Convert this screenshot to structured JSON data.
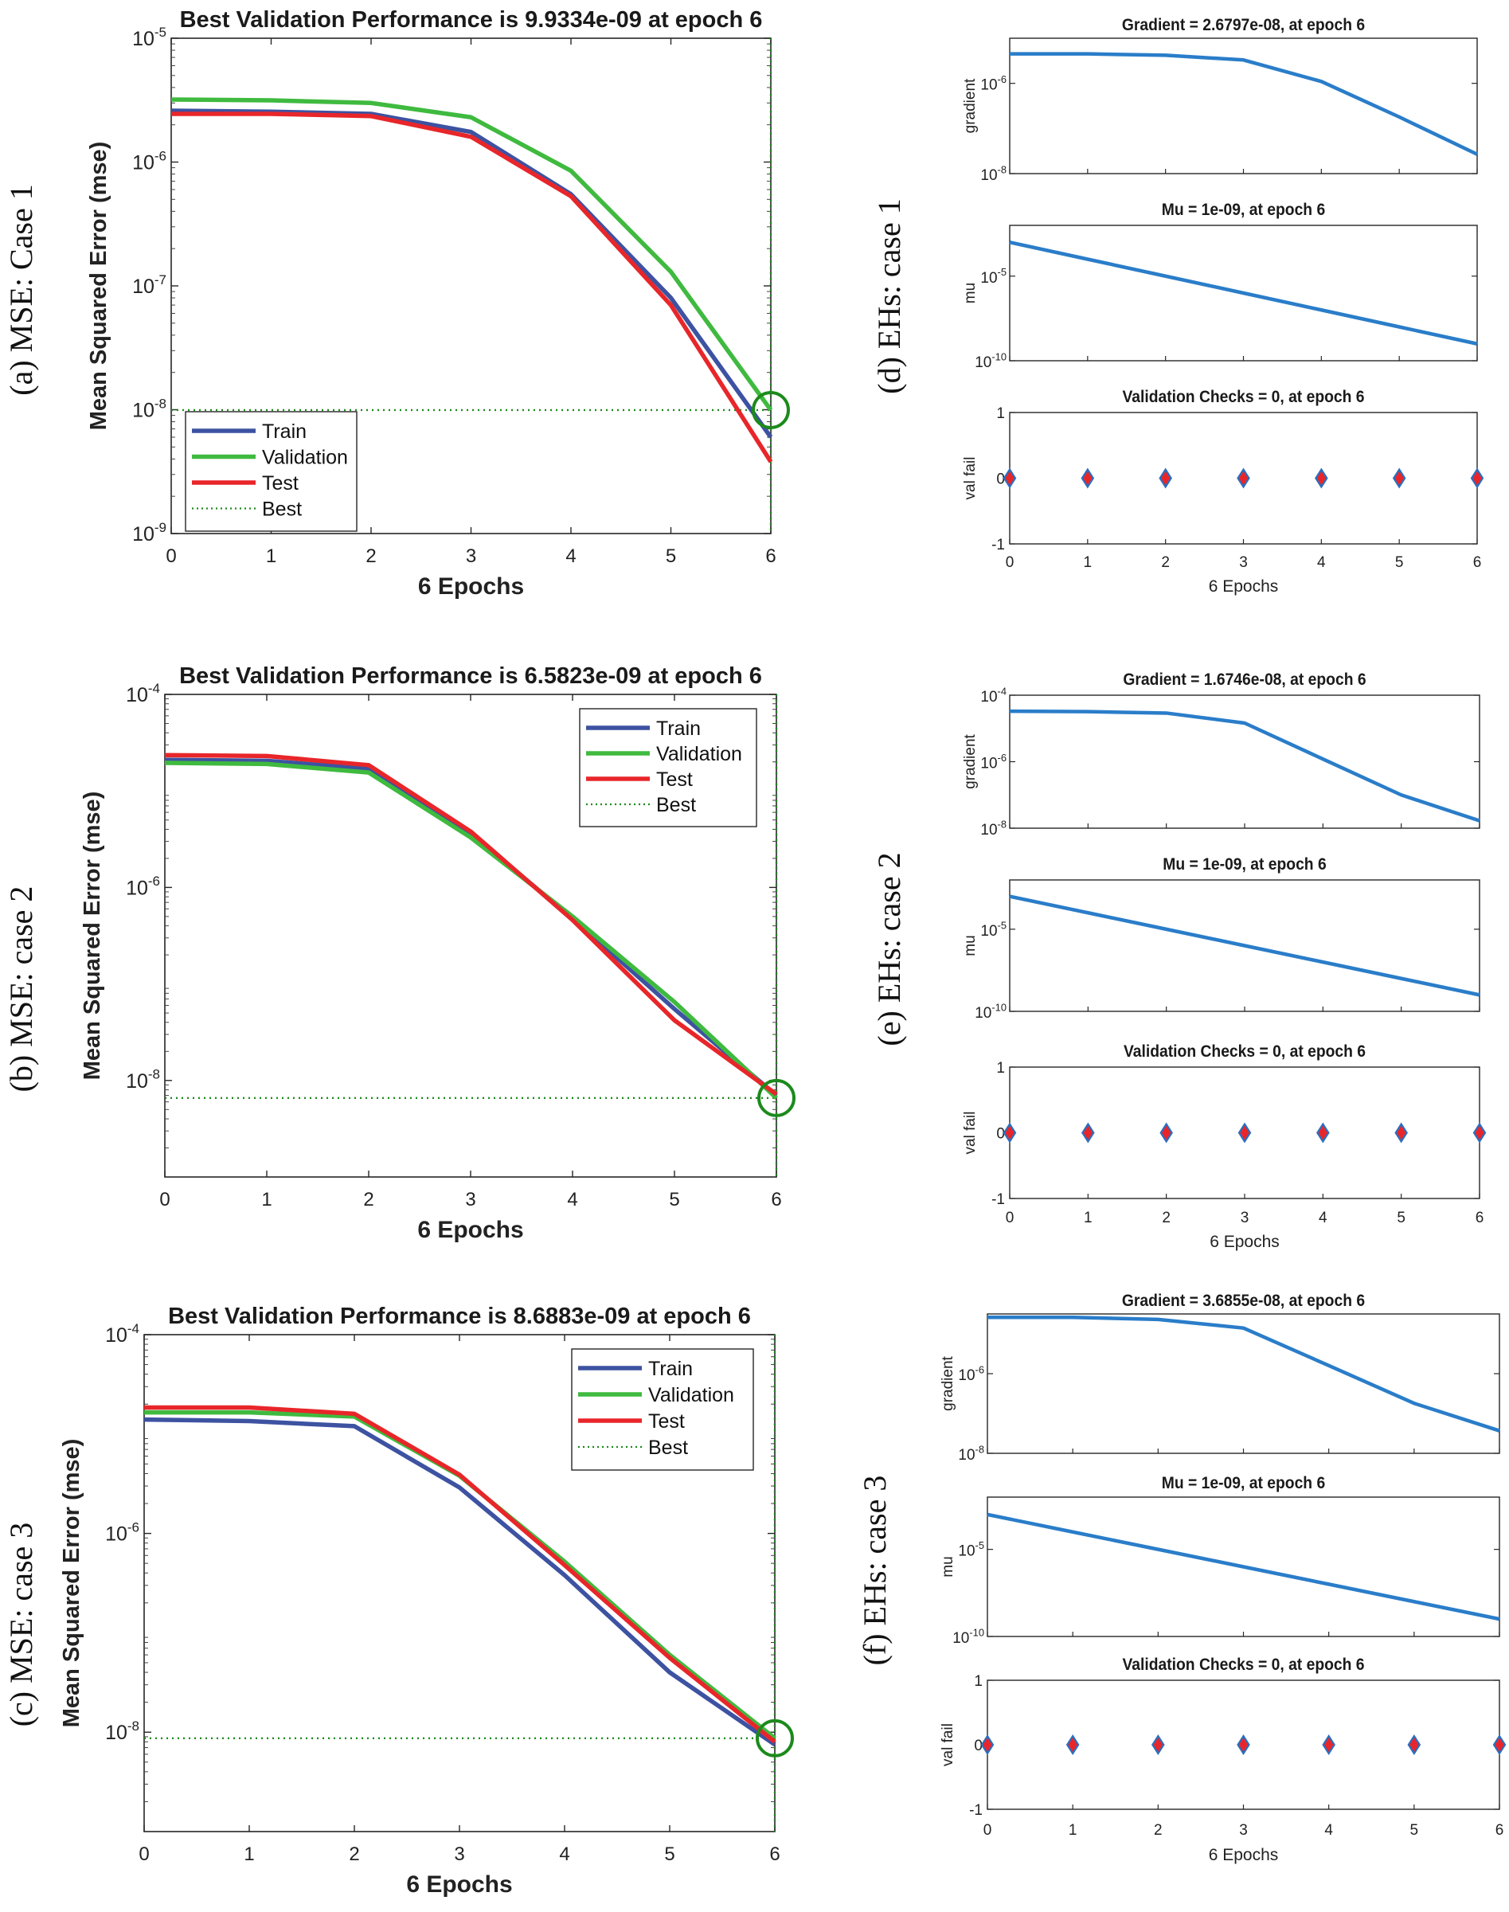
{
  "colors": {
    "train": "#3d52a1",
    "validation": "#3fba3f",
    "test": "#e8262a",
    "best": "#1c8a1c",
    "nntool": "#2a7dc9",
    "marker_fill": "#e8262a",
    "marker_edge": "#2a6fc0"
  },
  "chart_data": [
    {
      "id": "mse1",
      "type": "line",
      "side_label": "(a) MSE: Case 1",
      "title": "Best Validation Performance is 9.9334e-09 at epoch 6",
      "xlabel": "6 Epochs",
      "ylabel": "Mean Squared Error  (mse)",
      "yscale": "log",
      "ylim_exp": [
        -9,
        -5
      ],
      "xlim": [
        0,
        6
      ],
      "x_ticks": [
        "0",
        "1",
        "2",
        "3",
        "4",
        "5",
        "6"
      ],
      "y_ticks": [
        {
          "base": "10",
          "exp": "-9",
          "value": -9
        },
        {
          "base": "10",
          "exp": "-8",
          "value": -8
        },
        {
          "base": "10",
          "exp": "-7",
          "value": -7
        },
        {
          "base": "10",
          "exp": "-6",
          "value": -6
        },
        {
          "base": "10",
          "exp": "-5",
          "value": -5
        }
      ],
      "x": [
        0,
        1,
        2,
        3,
        4,
        5,
        6
      ],
      "series": [
        {
          "name": "Train",
          "key": "train",
          "values": [
            2.6e-06,
            2.55e-06,
            2.45e-06,
            1.75e-06,
            5.5e-07,
            8e-08,
            6e-09
          ]
        },
        {
          "name": "Validation",
          "key": "validation",
          "values": [
            3.2e-06,
            3.15e-06,
            3e-06,
            2.3e-06,
            8.5e-07,
            1.3e-07,
            9.9334e-09
          ]
        },
        {
          "name": "Test",
          "key": "test",
          "values": [
            2.45e-06,
            2.45e-06,
            2.35e-06,
            1.6e-06,
            5.3e-07,
            7e-08,
            3.8e-09
          ]
        }
      ],
      "best": {
        "name": "Best",
        "epoch": 6,
        "value": 9.9334e-09
      },
      "legend_position": "bottom-left"
    },
    {
      "id": "mse2",
      "type": "line",
      "side_label": "(b) MSE: case 2",
      "title": "Best Validation Performance is 6.5823e-09 at epoch 6",
      "xlabel": "6 Epochs",
      "ylabel": "Mean Squared Error  (mse)",
      "yscale": "log",
      "ylim_exp": [
        -9,
        -4
      ],
      "xlim": [
        0,
        6
      ],
      "x_ticks": [
        "0",
        "1",
        "2",
        "3",
        "4",
        "5",
        "6"
      ],
      "y_ticks": [
        {
          "base": "10",
          "exp": "-8",
          "value": -8
        },
        {
          "base": "10",
          "exp": "-6",
          "value": -6
        },
        {
          "base": "10",
          "exp": "-4",
          "value": -4
        }
      ],
      "x": [
        0,
        1,
        2,
        3,
        4,
        5,
        6
      ],
      "series": [
        {
          "name": "Train",
          "key": "train",
          "values": [
            2.1e-05,
            2.05e-05,
            1.7e-05,
            3.6e-06,
            4.8e-07,
            5.5e-08,
            7e-09
          ]
        },
        {
          "name": "Validation",
          "key": "validation",
          "values": [
            1.95e-05,
            1.9e-05,
            1.55e-05,
            3.3e-06,
            5e-07,
            6.5e-08,
            6.5823e-09
          ]
        },
        {
          "name": "Test",
          "key": "test",
          "values": [
            2.35e-05,
            2.3e-05,
            1.85e-05,
            3.8e-06,
            4.6e-07,
            4.2e-08,
            7.2e-09
          ]
        }
      ],
      "best": {
        "name": "Best",
        "epoch": 6,
        "value": 6.5823e-09
      },
      "legend_position": "top-right"
    },
    {
      "id": "mse3",
      "type": "line",
      "side_label": "(c) MSE: case 3",
      "title": "Best Validation Performance is 8.6883e-09 at epoch 6",
      "xlabel": "6 Epochs",
      "ylabel": "Mean Squared Error  (mse)",
      "yscale": "log",
      "ylim_exp": [
        -9,
        -4
      ],
      "xlim": [
        0,
        6
      ],
      "x_ticks": [
        "0",
        "1",
        "2",
        "3",
        "4",
        "5",
        "6"
      ],
      "y_ticks": [
        {
          "base": "10",
          "exp": "-8",
          "value": -8
        },
        {
          "base": "10",
          "exp": "-6",
          "value": -6
        },
        {
          "base": "10",
          "exp": "-4",
          "value": -4
        }
      ],
      "x": [
        0,
        1,
        2,
        3,
        4,
        5,
        6
      ],
      "series": [
        {
          "name": "Train",
          "key": "train",
          "values": [
            1.4e-05,
            1.35e-05,
            1.2e-05,
            2.9e-06,
            3.8e-07,
            4e-08,
            7.5e-09
          ]
        },
        {
          "name": "Validation",
          "key": "validation",
          "values": [
            1.65e-05,
            1.65e-05,
            1.5e-05,
            3.8e-06,
            5.2e-07,
            6e-08,
            8.6883e-09
          ]
        },
        {
          "name": "Test",
          "key": "test",
          "values": [
            1.85e-05,
            1.85e-05,
            1.6e-05,
            3.9e-06,
            4.8e-07,
            5.6e-08,
            8e-09
          ]
        }
      ],
      "best": {
        "name": "Best",
        "epoch": 6,
        "value": 8.6883e-09
      },
      "legend_position": "top-right"
    },
    {
      "id": "eh1",
      "type": "line",
      "side_label": "(d) EHs: case 1",
      "xlabel": "6 Epochs",
      "x": [
        0,
        1,
        2,
        3,
        4,
        5,
        6
      ],
      "x_ticks": [
        "0",
        "1",
        "2",
        "3",
        "4",
        "5",
        "6"
      ],
      "subplots": [
        {
          "kind": "gradient",
          "title": "Gradient = 2.6797e-08, at epoch 6",
          "ylabel": "gradient",
          "yscale": "log",
          "ylim_exp": [
            -8,
            -5
          ],
          "y_ticks": [
            {
              "base": "10",
              "exp": "-8",
              "value": -8
            },
            {
              "base": "10",
              "exp": "-6",
              "value": -6
            }
          ],
          "values": [
            4.5e-06,
            4.5e-06,
            4.2e-06,
            3.3e-06,
            1.1e-06,
            1.8e-07,
            2.6797e-08
          ]
        },
        {
          "kind": "mu",
          "title": "Mu = 1e-09, at epoch 6",
          "ylabel": "mu",
          "yscale": "log",
          "ylim_exp": [
            -10,
            -2
          ],
          "y_ticks": [
            {
              "base": "10",
              "exp": "-10",
              "value": -10
            },
            {
              "base": "10",
              "exp": "-5",
              "value": -5
            }
          ],
          "values": [
            0.001,
            0.0001,
            1e-05,
            1e-06,
            1e-07,
            1e-08,
            1e-09
          ]
        },
        {
          "kind": "valfail",
          "title": "Validation Checks = 0, at epoch 6",
          "ylabel": "val fail",
          "yscale": "linear",
          "ylim": [
            -1,
            1
          ],
          "y_ticks": [
            {
              "label": "-1",
              "value": -1
            },
            {
              "label": "0",
              "value": 0
            },
            {
              "label": "1",
              "value": 1
            }
          ],
          "values": [
            0,
            0,
            0,
            0,
            0,
            0,
            0
          ]
        }
      ]
    },
    {
      "id": "eh2",
      "type": "line",
      "side_label": "(e) EHs: case 2",
      "xlabel": "6 Epochs",
      "x": [
        0,
        1,
        2,
        3,
        4,
        5,
        6
      ],
      "x_ticks": [
        "0",
        "1",
        "2",
        "3",
        "4",
        "5",
        "6"
      ],
      "subplots": [
        {
          "kind": "gradient",
          "title": "Gradient = 1.6746e-08, at epoch 6",
          "ylabel": "gradient",
          "yscale": "log",
          "ylim_exp": [
            -8,
            -4
          ],
          "y_ticks": [
            {
              "base": "10",
              "exp": "-8",
              "value": -8
            },
            {
              "base": "10",
              "exp": "-6",
              "value": -6
            },
            {
              "base": "10",
              "exp": "-4",
              "value": -4
            }
          ],
          "values": [
            3.3e-05,
            3.2e-05,
            2.9e-05,
            1.45e-05,
            1.2e-06,
            1e-07,
            1.6746e-08
          ]
        },
        {
          "kind": "mu",
          "title": "Mu = 1e-09, at epoch 6",
          "ylabel": "mu",
          "yscale": "log",
          "ylim_exp": [
            -10,
            -2
          ],
          "y_ticks": [
            {
              "base": "10",
              "exp": "-10",
              "value": -10
            },
            {
              "base": "10",
              "exp": "-5",
              "value": -5
            }
          ],
          "values": [
            0.001,
            0.0001,
            1e-05,
            1e-06,
            1e-07,
            1e-08,
            1e-09
          ]
        },
        {
          "kind": "valfail",
          "title": "Validation Checks = 0, at epoch 6",
          "ylabel": "val fail",
          "yscale": "linear",
          "ylim": [
            -1,
            1
          ],
          "y_ticks": [
            {
              "label": "-1",
              "value": -1
            },
            {
              "label": "0",
              "value": 0
            },
            {
              "label": "1",
              "value": 1
            }
          ],
          "values": [
            0,
            0,
            0,
            0,
            0,
            0,
            0
          ]
        }
      ]
    },
    {
      "id": "eh3",
      "type": "line",
      "side_label": "(f) EHs: case 3",
      "xlabel": "6 Epochs",
      "x": [
        0,
        1,
        2,
        3,
        4,
        5,
        6
      ],
      "x_ticks": [
        "0",
        "1",
        "2",
        "3",
        "4",
        "5",
        "6"
      ],
      "subplots": [
        {
          "kind": "gradient",
          "title": "Gradient = 3.6855e-08, at epoch 6",
          "ylabel": "gradient",
          "yscale": "log",
          "ylim_exp": [
            -8,
            -4.5
          ],
          "y_ticks": [
            {
              "base": "10",
              "exp": "-8",
              "value": -8
            },
            {
              "base": "10",
              "exp": "-6",
              "value": -6
            }
          ],
          "values": [
            2.6e-05,
            2.6e-05,
            2.3e-05,
            1.4e-05,
            1.6e-06,
            1.8e-07,
            3.6855e-08
          ]
        },
        {
          "kind": "mu",
          "title": "Mu = 1e-09, at epoch 6",
          "ylabel": "mu",
          "yscale": "log",
          "ylim_exp": [
            -10,
            -2
          ],
          "y_ticks": [
            {
              "base": "10",
              "exp": "-10",
              "value": -10
            },
            {
              "base": "10",
              "exp": "-5",
              "value": -5
            }
          ],
          "values": [
            0.001,
            0.0001,
            1e-05,
            1e-06,
            1e-07,
            1e-08,
            1e-09
          ]
        },
        {
          "kind": "valfail",
          "title": "Validation Checks = 0, at epoch 6",
          "ylabel": "val fail",
          "yscale": "linear",
          "ylim": [
            -1,
            1
          ],
          "y_ticks": [
            {
              "label": "-1",
              "value": -1
            },
            {
              "label": "0",
              "value": 0
            },
            {
              "label": "1",
              "value": 1
            }
          ],
          "values": [
            0,
            0,
            0,
            0,
            0,
            0,
            0
          ]
        }
      ]
    }
  ]
}
